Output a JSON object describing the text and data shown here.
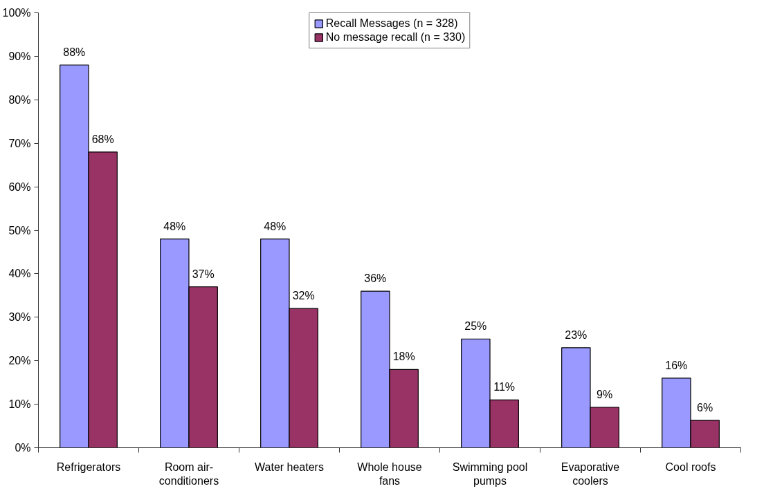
{
  "chart_data": {
    "type": "bar",
    "categories": [
      "Refrigerators",
      "Room air-conditioners",
      "Water heaters",
      "Whole house fans",
      "Swimming pool pumps",
      "Evaporative coolers",
      "Cool roofs"
    ],
    "series": [
      {
        "name": "Recall Messages (n = 328)",
        "color": "#9999ff",
        "values": [
          88,
          48,
          48,
          36,
          25,
          23,
          16
        ],
        "value_labels": [
          "88%",
          "48%",
          "48%",
          "36%",
          "25%",
          "23%",
          "16%"
        ]
      },
      {
        "name": "No message recall (n = 330)",
        "color": "#993366",
        "values": [
          68,
          37,
          32,
          18,
          11,
          9.3,
          6.3
        ],
        "value_labels": [
          "68%",
          "37%",
          "32%",
          "18%",
          "11%",
          "9%",
          "6%"
        ]
      }
    ],
    "ylim": [
      0,
      100
    ],
    "yticks": [
      {
        "value": 0,
        "label": "0%"
      },
      {
        "value": 10,
        "label": "10%"
      },
      {
        "value": 20,
        "label": "20%"
      },
      {
        "value": 30,
        "label": "30%"
      },
      {
        "value": 40,
        "label": "40%"
      },
      {
        "value": 50,
        "label": "50%"
      },
      {
        "value": 60,
        "label": "60%"
      },
      {
        "value": 70,
        "label": "70%"
      },
      {
        "value": 80,
        "label": "80%"
      },
      {
        "value": 90,
        "label": "90%"
      },
      {
        "value": 100,
        "label": "100%"
      }
    ],
    "grid": false,
    "legend": "top"
  }
}
